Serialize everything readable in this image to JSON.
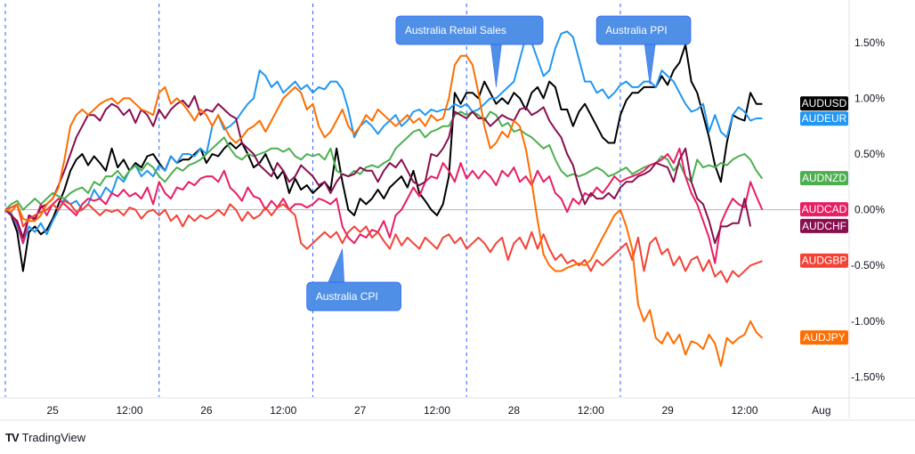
{
  "brand": {
    "logo_mark": "TV",
    "name": "TradingView"
  },
  "chart_data": {
    "type": "line",
    "x_ticks": [
      "25",
      "12:00",
      "26",
      "12:00",
      "27",
      "12:00",
      "28",
      "12:00",
      "29",
      "12:00",
      "Aug"
    ],
    "y_ticks": [
      "1.50%",
      "1.00%",
      "0.50%",
      "0.00%",
      "-0.50%",
      "-1.00%",
      "-1.50%"
    ],
    "y_tick_values": [
      1.5,
      1.0,
      0.5,
      0.0,
      -0.5,
      -1.0,
      -1.5
    ],
    "ylim": [
      -1.68,
      1.85
    ],
    "xlim": [
      0,
      132
    ],
    "x_tick_positions": [
      8,
      21,
      34,
      47,
      60,
      73,
      86,
      99,
      112,
      125,
      138
    ],
    "session_separators": [
      0,
      26,
      52,
      78,
      104
    ],
    "zero_line": 0.0,
    "grid": false,
    "legend": "right",
    "series": [
      {
        "name": "AUDUSD",
        "color": "#000000",
        "values": [
          0.0,
          -0.05,
          -0.2,
          -0.55,
          -0.2,
          -0.15,
          -0.22,
          -0.18,
          -0.08,
          0.05,
          0.18,
          0.35,
          0.45,
          0.5,
          0.4,
          0.48,
          0.42,
          0.35,
          0.55,
          0.38,
          0.45,
          0.35,
          0.42,
          0.38,
          0.48,
          0.5,
          0.42,
          0.35,
          0.48,
          0.42,
          0.45,
          0.45,
          0.5,
          0.55,
          0.42,
          0.5,
          0.48,
          0.55,
          0.6,
          0.55,
          0.6,
          0.5,
          0.38,
          0.42,
          0.5,
          0.38,
          0.28,
          0.35,
          0.15,
          0.28,
          0.18,
          0.22,
          0.15,
          0.2,
          0.25,
          0.18,
          0.55,
          0.25,
          0.0,
          -0.05,
          0.1,
          0.05,
          0.1,
          0.18,
          0.1,
          0.2,
          0.25,
          0.3,
          0.2,
          0.35,
          0.15,
          0.08,
          0.0,
          -0.05,
          0.05,
          0.3,
          1.05,
          0.95,
          1.05,
          1.05,
          1.0,
          1.15,
          1.05,
          0.95,
          1.0,
          0.95,
          1.05,
          1.0,
          0.9,
          1.05,
          1.1,
          1.0,
          1.15,
          1.1,
          0.9,
          0.9,
          0.75,
          0.88,
          0.95,
          0.85,
          0.75,
          0.65,
          0.6,
          0.6,
          0.85,
          0.98,
          1.05,
          1.05,
          1.1,
          1.1,
          1.1,
          1.2,
          1.12,
          1.25,
          1.32,
          1.48,
          1.15,
          1.05,
          0.85,
          0.65,
          0.4,
          0.25,
          0.6,
          0.85,
          0.82,
          0.8,
          1.05,
          0.95,
          0.95
        ]
      },
      {
        "name": "AUDEUR",
        "color": "#2196f3",
        "values": [
          0.0,
          -0.03,
          -0.15,
          -0.3,
          -0.15,
          -0.2,
          -0.12,
          -0.22,
          -0.1,
          0.0,
          0.1,
          0.05,
          0.08,
          0.0,
          0.05,
          0.18,
          0.1,
          0.2,
          0.15,
          0.3,
          0.25,
          0.35,
          0.4,
          0.3,
          0.35,
          0.3,
          0.4,
          0.35,
          0.48,
          0.42,
          0.5,
          0.5,
          0.48,
          0.55,
          0.5,
          0.75,
          0.85,
          0.72,
          0.75,
          0.8,
          0.88,
          0.95,
          1.0,
          1.25,
          1.2,
          1.1,
          1.15,
          1.05,
          1.1,
          1.15,
          1.08,
          1.12,
          1.05,
          1.1,
          1.08,
          1.15,
          1.15,
          1.08,
          0.9,
          0.65,
          0.75,
          0.8,
          0.75,
          0.68,
          0.75,
          0.8,
          0.85,
          0.75,
          0.8,
          0.88,
          0.9,
          0.85,
          0.9,
          0.88,
          0.9,
          0.9,
          0.95,
          0.92,
          0.95,
          0.88,
          0.9,
          0.95,
          1.0,
          1.0,
          1.05,
          1.1,
          1.15,
          1.35,
          1.55,
          1.5,
          1.35,
          1.2,
          1.25,
          1.45,
          1.58,
          1.6,
          1.55,
          1.35,
          1.15,
          1.15,
          1.05,
          1.08,
          1.0,
          1.05,
          1.12,
          1.15,
          1.1,
          1.1,
          1.15,
          1.15,
          1.1,
          1.25,
          1.2,
          1.15,
          1.05,
          0.95,
          0.88,
          0.9,
          0.95,
          0.7,
          0.85,
          0.7,
          0.65,
          0.85,
          0.92,
          0.88,
          0.8,
          0.82,
          0.82
        ]
      },
      {
        "name": "AUDNZD",
        "color": "#4caf50",
        "values": [
          0.0,
          0.05,
          0.08,
          0.0,
          0.05,
          0.1,
          0.05,
          0.1,
          0.15,
          0.12,
          0.1,
          0.15,
          0.18,
          0.2,
          0.15,
          0.25,
          0.22,
          0.3,
          0.3,
          0.35,
          0.28,
          0.35,
          0.4,
          0.35,
          0.42,
          0.38,
          0.3,
          0.25,
          0.32,
          0.38,
          0.35,
          0.4,
          0.42,
          0.45,
          0.5,
          0.55,
          0.6,
          0.65,
          0.55,
          0.48,
          0.45,
          0.5,
          0.48,
          0.5,
          0.52,
          0.55,
          0.55,
          0.52,
          0.55,
          0.48,
          0.45,
          0.5,
          0.48,
          0.5,
          0.45,
          0.55,
          0.35,
          0.32,
          0.3,
          0.35,
          0.32,
          0.38,
          0.4,
          0.38,
          0.42,
          0.45,
          0.55,
          0.6,
          0.65,
          0.7,
          0.72,
          0.65,
          0.7,
          0.72,
          0.75,
          0.75,
          0.85,
          0.88,
          0.85,
          0.88,
          0.85,
          0.8,
          0.88,
          0.85,
          0.75,
          0.78,
          0.7,
          0.72,
          0.68,
          0.65,
          0.6,
          0.55,
          0.58,
          0.45,
          0.35,
          0.3,
          0.32,
          0.3,
          0.32,
          0.35,
          0.38,
          0.35,
          0.3,
          0.32,
          0.35,
          0.38,
          0.32,
          0.35,
          0.38,
          0.4,
          0.42,
          0.48,
          0.45,
          0.35,
          0.42,
          0.3,
          0.25,
          0.45,
          0.38,
          0.4,
          0.38,
          0.42,
          0.4,
          0.45,
          0.48,
          0.5,
          0.45,
          0.35,
          0.28
        ]
      },
      {
        "name": "AUDCAD",
        "color": "#e91e63",
        "values": [
          0.0,
          -0.05,
          -0.12,
          -0.3,
          -0.05,
          -0.1,
          0.05,
          -0.05,
          0.05,
          0.1,
          0.05,
          0.0,
          -0.05,
          0.05,
          0.1,
          0.08,
          0.1,
          0.05,
          0.15,
          0.12,
          0.18,
          0.12,
          0.15,
          0.1,
          0.2,
          0.05,
          0.25,
          0.15,
          0.1,
          0.2,
          0.18,
          0.25,
          0.22,
          0.28,
          0.3,
          0.3,
          0.25,
          0.35,
          0.2,
          0.15,
          0.08,
          0.2,
          0.12,
          0.1,
          0.0,
          0.08,
          0.02,
          0.1,
          0.0,
          0.05,
          0.05,
          0.02,
          0.05,
          0.1,
          0.08,
          0.05,
          0.1,
          -0.15,
          -0.25,
          -0.3,
          -0.22,
          -0.25,
          -0.18,
          -0.2,
          -0.1,
          -0.25,
          -0.05,
          0.0,
          0.1,
          0.2,
          0.12,
          0.25,
          0.3,
          0.28,
          0.42,
          0.35,
          0.25,
          0.42,
          0.28,
          0.35,
          0.28,
          0.35,
          0.3,
          0.22,
          0.35,
          0.3,
          0.38,
          0.25,
          0.3,
          0.22,
          0.35,
          0.25,
          0.3,
          0.15,
          0.1,
          -0.02,
          0.1,
          0.05,
          0.15,
          0.12,
          0.2,
          0.15,
          0.22,
          0.3,
          0.25,
          0.28,
          0.3,
          0.32,
          0.35,
          0.4,
          0.42,
          0.45,
          0.5,
          0.42,
          0.55,
          0.3,
          0.15,
          0.05,
          -0.1,
          -0.25,
          -0.48,
          -0.12,
          0.0,
          0.1,
          0.05,
          0.02,
          0.25,
          0.12,
          0.0
        ]
      },
      {
        "name": "AUDCHF",
        "color": "#880e4f",
        "values": [
          0.0,
          -0.05,
          -0.1,
          -0.25,
          -0.05,
          -0.08,
          0.02,
          0.05,
          0.1,
          0.22,
          0.35,
          0.5,
          0.65,
          0.75,
          0.85,
          0.85,
          0.8,
          0.9,
          0.95,
          0.92,
          0.85,
          0.9,
          0.78,
          0.9,
          0.85,
          0.75,
          0.9,
          0.82,
          0.9,
          0.95,
          0.98,
          0.92,
          1.02,
          0.85,
          0.9,
          0.88,
          0.95,
          0.9,
          0.85,
          0.82,
          0.6,
          0.55,
          0.5,
          0.4,
          0.35,
          0.3,
          0.42,
          0.35,
          0.25,
          0.3,
          0.4,
          0.35,
          0.3,
          0.22,
          0.25,
          0.15,
          0.25,
          0.32,
          0.3,
          0.32,
          0.38,
          0.35,
          0.35,
          0.25,
          0.35,
          0.42,
          0.38,
          0.45,
          0.35,
          0.25,
          0.22,
          0.25,
          0.5,
          0.48,
          0.55,
          0.65,
          0.88,
          0.85,
          0.82,
          0.88,
          0.82,
          0.82,
          0.75,
          0.8,
          0.85,
          0.82,
          0.8,
          0.9,
          0.92,
          0.85,
          0.88,
          0.92,
          0.8,
          0.72,
          0.65,
          0.5,
          0.4,
          0.2,
          0.05,
          0.15,
          0.1,
          0.1,
          0.15,
          0.1,
          0.2,
          0.25,
          0.25,
          0.3,
          0.32,
          0.35,
          0.42,
          0.4,
          0.38,
          0.25,
          0.45,
          0.55,
          0.25,
          0.1,
          0.05,
          -0.1,
          -0.3,
          -0.15,
          -0.15,
          -0.12,
          -0.12,
          0.1,
          -0.15
        ]
      },
      {
        "name": "AUDGBP",
        "color": "#f44336",
        "values": [
          0.0,
          0.02,
          0.05,
          -0.15,
          -0.08,
          -0.05,
          -0.02,
          0.0,
          0.05,
          0.0,
          0.08,
          0.05,
          -0.02,
          0.0,
          0.05,
          0.0,
          -0.05,
          0.0,
          -0.02,
          0.0,
          -0.05,
          0.02,
          0.0,
          -0.08,
          -0.02,
          0.0,
          -0.05,
          0.0,
          -0.1,
          -0.05,
          -0.15,
          -0.05,
          -0.1,
          -0.05,
          -0.08,
          -0.05,
          0.0,
          -0.05,
          0.05,
          0.0,
          -0.1,
          -0.02,
          -0.08,
          -0.05,
          0.02,
          -0.05,
          0.02,
          0.05,
          0.0,
          -0.05,
          -0.3,
          -0.35,
          -0.3,
          -0.25,
          -0.2,
          -0.25,
          -0.2,
          -0.3,
          -0.2,
          -0.15,
          -0.2,
          -0.15,
          -0.25,
          -0.2,
          -0.28,
          -0.35,
          -0.22,
          -0.32,
          -0.25,
          -0.3,
          -0.35,
          -0.25,
          -0.3,
          -0.35,
          -0.25,
          -0.22,
          -0.3,
          -0.25,
          -0.35,
          -0.3,
          -0.25,
          -0.3,
          -0.38,
          -0.3,
          -0.25,
          -0.45,
          -0.3,
          -0.25,
          -0.35,
          -0.2,
          -0.35,
          -0.22,
          -0.35,
          -0.45,
          -0.4,
          -0.48,
          -0.45,
          -0.5,
          -0.45,
          -0.55,
          -0.45,
          -0.5,
          -0.45,
          -0.4,
          -0.35,
          -0.3,
          -0.45,
          -0.25,
          -0.55,
          -0.3,
          -0.25,
          -0.4,
          -0.35,
          -0.5,
          -0.42,
          -0.55,
          -0.45,
          -0.42,
          -0.55,
          -0.45,
          -0.6,
          -0.55,
          -0.65,
          -0.55,
          -0.6,
          -0.55,
          -0.5,
          -0.48,
          -0.46
        ]
      },
      {
        "name": "AUDJPY",
        "color": "#ff6d00",
        "values": [
          0.0,
          -0.02,
          0.05,
          -0.08,
          -0.1,
          -0.1,
          -0.05,
          0.05,
          0.1,
          0.2,
          0.45,
          0.75,
          0.85,
          0.9,
          0.85,
          0.9,
          0.95,
          0.98,
          1.0,
          0.95,
          1.0,
          1.0,
          0.95,
          0.9,
          0.88,
          0.85,
          1.05,
          1.1,
          0.95,
          1.0,
          0.95,
          0.88,
          0.8,
          0.9,
          0.85,
          0.75,
          0.85,
          0.75,
          0.65,
          0.6,
          0.65,
          0.72,
          0.75,
          0.8,
          0.7,
          0.8,
          0.9,
          1.0,
          1.05,
          1.1,
          1.05,
          0.9,
          0.95,
          0.75,
          0.65,
          0.7,
          0.8,
          0.9,
          0.75,
          0.68,
          0.75,
          0.85,
          0.8,
          0.9,
          0.85,
          0.8,
          0.75,
          0.8,
          0.85,
          0.78,
          0.82,
          0.75,
          0.85,
          0.8,
          0.82,
          1.0,
          1.3,
          1.38,
          1.38,
          1.3,
          1.05,
          0.75,
          0.55,
          0.6,
          0.7,
          0.65,
          0.8,
          0.75,
          0.55,
          0.25,
          -0.1,
          -0.4,
          -0.5,
          -0.55,
          -0.55,
          -0.52,
          -0.5,
          -0.48,
          -0.5,
          -0.45,
          -0.35,
          -0.25,
          -0.15,
          -0.05,
          0.0,
          -0.15,
          -0.35,
          -0.85,
          -1.0,
          -0.9,
          -1.15,
          -1.2,
          -1.1,
          -1.2,
          -1.12,
          -1.3,
          -1.18,
          -1.2,
          -1.25,
          -1.12,
          -1.2,
          -1.4,
          -1.15,
          -1.2,
          -1.15,
          -1.12,
          -1.0,
          -1.1,
          -1.15
        ]
      }
    ],
    "end_labels": [
      "AUDUSD",
      "AUDEUR",
      "AUDNZD",
      "AUDCAD",
      "AUDCHF",
      "AUDGBP",
      "AUDJPY"
    ],
    "annotations": [
      {
        "text": "Australia CPI",
        "anchor_x": 57,
        "anchor_y": -0.35,
        "placement": "below"
      },
      {
        "text": "Australia Retail Sales",
        "anchor_x": 83,
        "anchor_y": 1.1,
        "placement": "above"
      },
      {
        "text": "Australia PPI",
        "anchor_x": 109,
        "anchor_y": 1.12,
        "placement": "above"
      }
    ]
  }
}
